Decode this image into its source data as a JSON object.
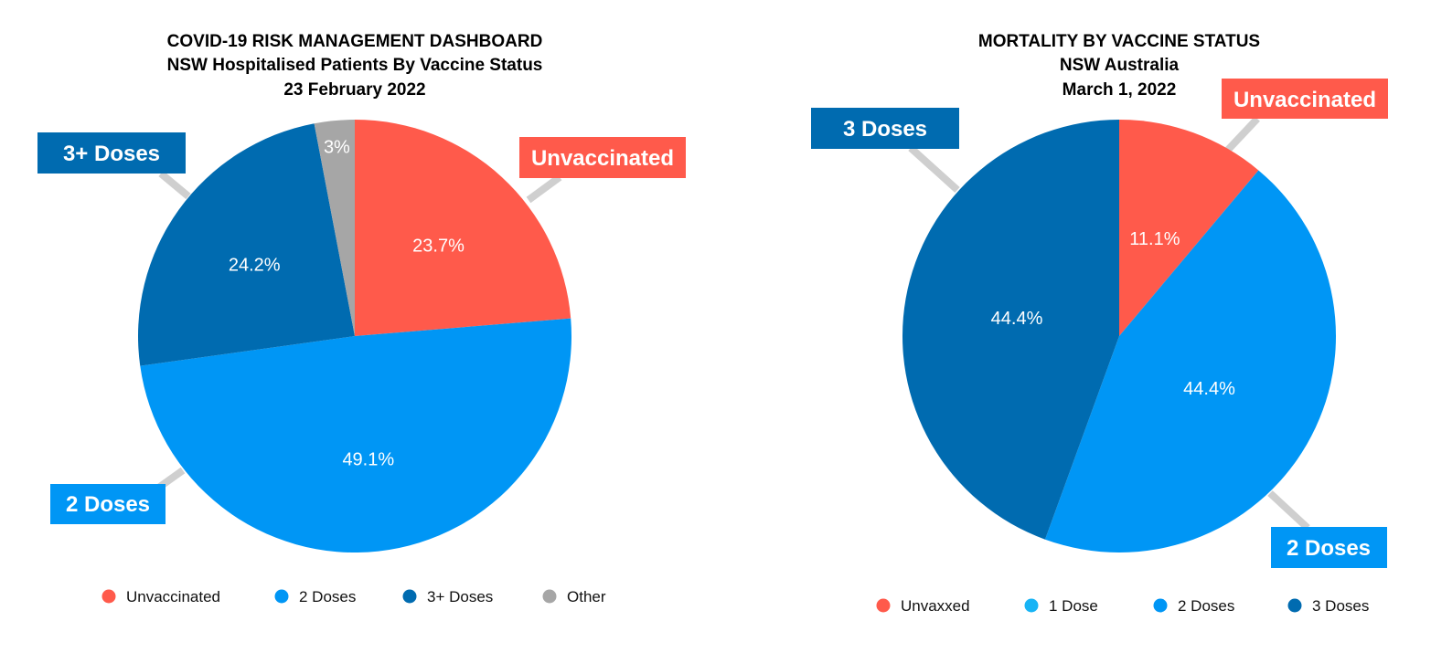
{
  "chart_data": [
    {
      "type": "pie",
      "title_lines": [
        "COVID-19 RISK MANAGEMENT DASHBOARD",
        "NSW Hospitalised Patients By Vaccine Status",
        "23 February 2022"
      ],
      "slices": [
        {
          "label": "Unvaccinated",
          "value": 23.7,
          "display": "23.7%",
          "color": "#ff5a4b"
        },
        {
          "label": "2 Doses",
          "value": 49.1,
          "display": "49.1%",
          "color": "#0096f5"
        },
        {
          "label": "3+ Doses",
          "value": 24.2,
          "display": "24.2%",
          "color": "#006bb0"
        },
        {
          "label": "Other",
          "value": 3,
          "display": "3%",
          "color": "#a6a6a6"
        }
      ],
      "callouts": [
        "Unvaccinated",
        "2 Doses",
        "3+ Doses"
      ],
      "legend": [
        {
          "label": "Unvaccinated",
          "color": "#ff5a4b"
        },
        {
          "label": "2 Doses",
          "color": "#0096f5"
        },
        {
          "label": "3+ Doses",
          "color": "#006bb0"
        },
        {
          "label": "Other",
          "color": "#a6a6a6"
        }
      ],
      "legend_position": "bottom"
    },
    {
      "type": "pie",
      "title_lines": [
        "MORTALITY BY VACCINE STATUS",
        "NSW Australia",
        "March 1, 2022"
      ],
      "slices": [
        {
          "label": "Unvaxxed",
          "value": 11.1,
          "display": "11.1%",
          "color": "#ff5a4b"
        },
        {
          "label": "1 Dose",
          "value": 0,
          "display": "",
          "color": "#18b4f5"
        },
        {
          "label": "2 Doses",
          "value": 44.4,
          "display": "44.4%",
          "color": "#0096f5"
        },
        {
          "label": "3 Doses",
          "value": 44.4,
          "display": "44.4%",
          "color": "#006bb0"
        }
      ],
      "callouts": [
        "Unvaccinated",
        "2 Doses",
        "3 Doses"
      ],
      "legend": [
        {
          "label": "Unvaxxed",
          "color": "#ff5a4b"
        },
        {
          "label": "1 Dose",
          "color": "#18b4f5"
        },
        {
          "label": "2 Doses",
          "color": "#0096f5"
        },
        {
          "label": "3 Doses",
          "color": "#006bb0"
        }
      ],
      "legend_position": "bottom"
    }
  ]
}
